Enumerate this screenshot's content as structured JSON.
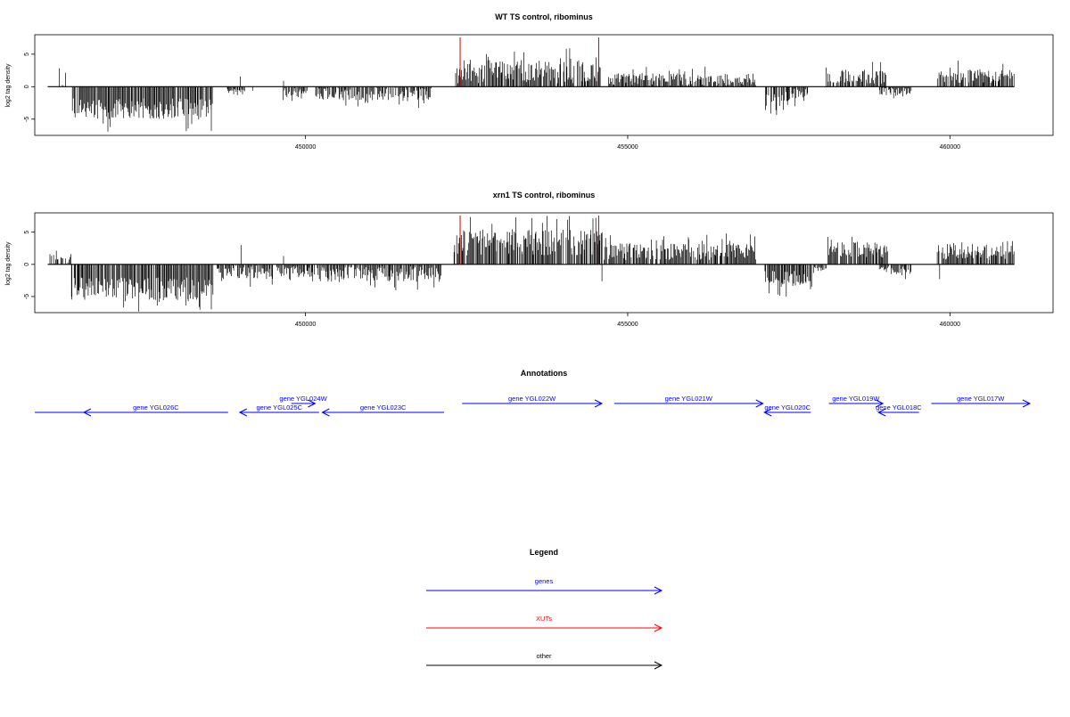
{
  "colors": {
    "gene": "#0000ff",
    "xut": "#ff0000",
    "other": "#000000",
    "data": "#000000",
    "marker": "#cc0000"
  },
  "chart_data": [
    {
      "type": "bar",
      "title": "WT TS control, ribominus",
      "ylabel": "log2 tag density",
      "xlim": [
        445800,
        461600
      ],
      "ylim": [
        -7.5,
        8
      ],
      "x_ticks": [
        450000,
        455000,
        460000
      ],
      "y_ticks": [
        -5,
        0,
        5
      ],
      "markers": [
        452400,
        454550
      ],
      "segments": [
        {
          "from": 446200,
          "to": 446270,
          "mean": 0,
          "amp": 1.0,
          "sign": 1
        },
        {
          "from": 446380,
          "to": 448560,
          "mean": -3.4,
          "amp": 1.6,
          "sign": -1
        },
        {
          "from": 448780,
          "to": 449050,
          "mean": -0.8,
          "amp": 0.5,
          "sign": -1
        },
        {
          "from": 449650,
          "to": 450020,
          "mean": -0.9,
          "amp": 0.7,
          "sign": -1
        },
        {
          "from": 450150,
          "to": 451950,
          "mean": -1.1,
          "amp": 1.0,
          "sign": -1
        },
        {
          "from": 452330,
          "to": 454580,
          "mean": 2.3,
          "amp": 1.8,
          "sign": 1
        },
        {
          "from": 454700,
          "to": 456990,
          "mean": 1.1,
          "amp": 1.0,
          "sign": 1
        },
        {
          "from": 457140,
          "to": 457500,
          "mean": -1.7,
          "amp": 1.2,
          "sign": -1
        },
        {
          "from": 457480,
          "to": 457800,
          "mean": -1.2,
          "amp": 0.9,
          "sign": -1
        },
        {
          "from": 458080,
          "to": 459010,
          "mean": 1.6,
          "amp": 1.2,
          "sign": 1
        },
        {
          "from": 458900,
          "to": 459400,
          "mean": -0.7,
          "amp": 0.6,
          "sign": -1
        },
        {
          "from": 459800,
          "to": 461000,
          "mean": 1.6,
          "amp": 1.1,
          "sign": 1
        }
      ],
      "spikes": [
        [
          446180,
          2.8
        ],
        [
          448540,
          -6.8
        ],
        [
          448990,
          1.6
        ],
        [
          449660,
          0.9
        ],
        [
          449180,
          -0.6
        ],
        [
          454100,
          5.9
        ],
        [
          457140,
          -3.6
        ],
        [
          459270,
          -1.5
        ]
      ]
    },
    {
      "type": "bar",
      "title": "xrn1 TS control, ribominus",
      "ylabel": "log2 tag density",
      "xlim": [
        445800,
        461600
      ],
      "ylim": [
        -7.5,
        8
      ],
      "x_ticks": [
        450000,
        455000,
        460000
      ],
      "y_ticks": [
        -5,
        0,
        5
      ],
      "markers": [
        452400,
        454550
      ],
      "segments": [
        {
          "from": 446030,
          "to": 446340,
          "mean": 0.4,
          "amp": 0.8,
          "sign": 1
        },
        {
          "from": 446360,
          "to": 448580,
          "mean": -3.8,
          "amp": 1.8,
          "sign": -1
        },
        {
          "from": 448620,
          "to": 449500,
          "mean": -1.2,
          "amp": 1.1,
          "sign": -1
        },
        {
          "from": 449550,
          "to": 450150,
          "mean": -1.1,
          "amp": 0.8,
          "sign": -1
        },
        {
          "from": 450180,
          "to": 452100,
          "mean": -1.5,
          "amp": 1.2,
          "sign": -1
        },
        {
          "from": 452300,
          "to": 454600,
          "mean": 3.4,
          "amp": 2.0,
          "sign": 1
        },
        {
          "from": 454630,
          "to": 456990,
          "mean": 2.0,
          "amp": 1.3,
          "sign": 1
        },
        {
          "from": 457120,
          "to": 457860,
          "mean": -2.3,
          "amp": 1.3,
          "sign": -1
        },
        {
          "from": 457880,
          "to": 458080,
          "mean": -0.8,
          "amp": 0.5,
          "sign": -1
        },
        {
          "from": 458100,
          "to": 459030,
          "mean": 2.2,
          "amp": 1.3,
          "sign": 1
        },
        {
          "from": 458900,
          "to": 459400,
          "mean": -0.9,
          "amp": 0.6,
          "sign": -1
        },
        {
          "from": 459800,
          "to": 461000,
          "mean": 1.9,
          "amp": 1.3,
          "sign": 1
        }
      ],
      "spikes": [
        [
          446360,
          1.6
        ],
        [
          448540,
          -7.0
        ],
        [
          449000,
          3.0
        ],
        [
          449660,
          1.3
        ],
        [
          454600,
          -2.6
        ],
        [
          455020,
          3.1
        ],
        [
          459310,
          -2.3
        ],
        [
          459840,
          -2.3
        ]
      ]
    }
  ],
  "annotations": {
    "title": "Annotations",
    "xlim": [
      445800,
      461600
    ],
    "genes": [
      {
        "label": "",
        "start": 445800,
        "end": 446560,
        "strand": "none",
        "color": "gene",
        "row": "low"
      },
      {
        "label": "gene YGL026C",
        "start": 446560,
        "end": 448800,
        "strand": "-",
        "color": "gene",
        "row": "low"
      },
      {
        "label": "gene YGL025C",
        "start": 448980,
        "end": 450210,
        "strand": "-",
        "color": "gene",
        "row": "low"
      },
      {
        "label": "gene YGL024W",
        "start": 449780,
        "end": 450150,
        "strand": "+",
        "color": "gene",
        "row": "high"
      },
      {
        "label": "gene YGL023C",
        "start": 450260,
        "end": 452150,
        "strand": "-",
        "color": "gene",
        "row": "low"
      },
      {
        "label": "gene YGL022W",
        "start": 452430,
        "end": 454600,
        "strand": "+",
        "color": "gene",
        "row": "high"
      },
      {
        "label": "gene YGL021W",
        "start": 454790,
        "end": 457100,
        "strand": "+",
        "color": "gene",
        "row": "high"
      },
      {
        "label": "gene YGL020C",
        "start": 457120,
        "end": 457840,
        "strand": "-",
        "color": "gene",
        "row": "low"
      },
      {
        "label": "gene YGL019W",
        "start": 458120,
        "end": 458960,
        "strand": "+",
        "color": "gene",
        "row": "high"
      },
      {
        "label": "gene YGL018C",
        "start": 458890,
        "end": 459520,
        "strand": "-",
        "color": "gene",
        "row": "low"
      },
      {
        "label": "gene YGL017W",
        "start": 459710,
        "end": 461240,
        "strand": "+",
        "color": "gene",
        "row": "high"
      }
    ]
  },
  "legend": {
    "title": "Legend",
    "items": [
      {
        "label": "genes",
        "color": "gene"
      },
      {
        "label": "XUTs",
        "color": "xut"
      },
      {
        "label": "other",
        "color": "other"
      }
    ]
  }
}
